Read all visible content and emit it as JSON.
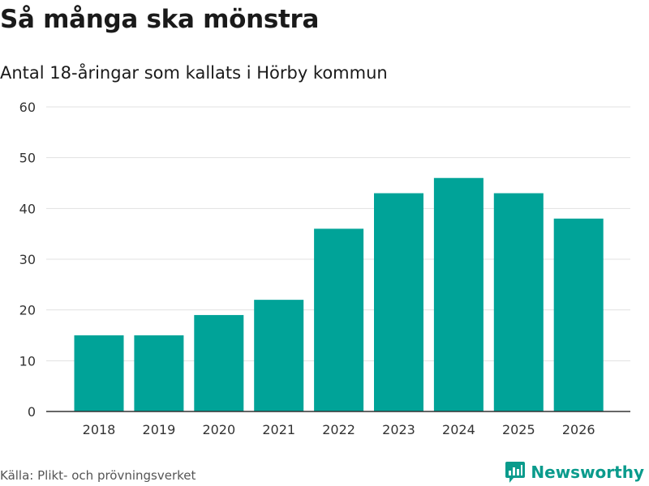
{
  "header": {
    "title": "Så många ska mönstra",
    "subtitle": "Antal 18-åringar som kallats i Hörby kommun"
  },
  "footer": {
    "source": "Källa: Plikt- och prövningsverket",
    "brand": "Newsworthy"
  },
  "colors": {
    "bar": "#00a398",
    "grid": "#e1e1e1",
    "axis": "#333333",
    "brand": "#0a9b8c"
  },
  "icons": {
    "brand_logo": "newsworthy-logo-icon"
  },
  "chart_data": {
    "type": "bar",
    "title": "Så många ska mönstra",
    "subtitle": "Antal 18-åringar som kallats i Hörby kommun",
    "xlabel": "",
    "ylabel": "",
    "categories": [
      "2018",
      "2019",
      "2020",
      "2021",
      "2022",
      "2023",
      "2024",
      "2025",
      "2026"
    ],
    "values": [
      15,
      15,
      19,
      22,
      36,
      43,
      46,
      43,
      38
    ],
    "ylim": [
      0,
      60
    ],
    "yticks": [
      0,
      10,
      20,
      30,
      40,
      50,
      60
    ],
    "grid": true,
    "legend": "none"
  }
}
